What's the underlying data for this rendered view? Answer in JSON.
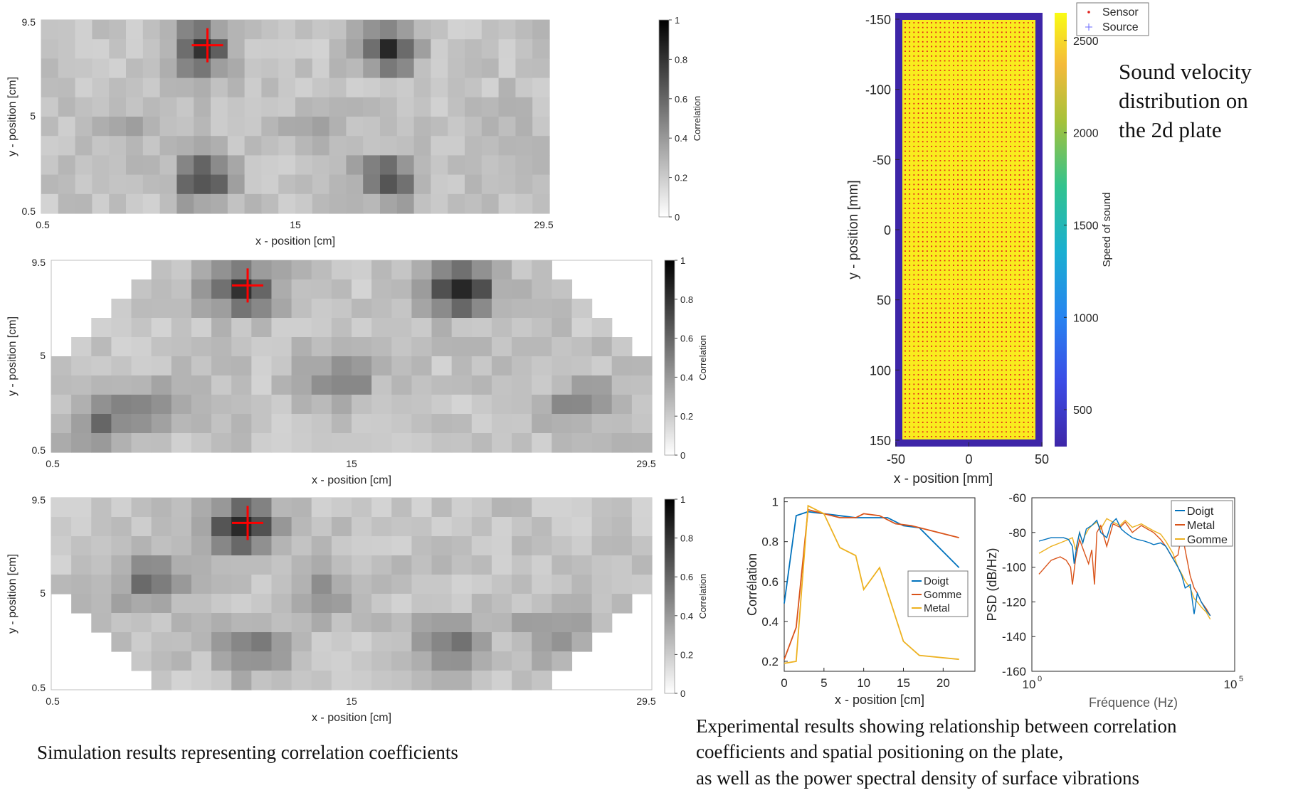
{
  "captions": {
    "simulation": "Simulation results representing correlation coefficients",
    "experimental": "Experimental results showing relationship between correlation\ncoefficients and spatial positioning on the plate,\n as well as the power spectral density of surface vibrations",
    "velocity": "Sound velocity\ndistribution on\nthe 2d plate"
  },
  "heatmap_labels": {
    "xlabel": "x - position [cm]",
    "ylabel": "y - position [cm]",
    "colorbar_label": "Correlation",
    "x_ticks": [
      "0.5",
      "15",
      "29.5"
    ],
    "y_ticks": [
      "9.5",
      "5",
      "0.5"
    ],
    "colorbar_ticks": [
      "1",
      "0.8",
      "0.6",
      "0.4",
      "0.2",
      "0"
    ]
  },
  "velocity_labels": {
    "xlabel": "x - position [mm]",
    "ylabel": "y - position [mm]",
    "colorbar_label": "Speed of sound",
    "x_ticks": [
      "-50",
      "0",
      "50"
    ],
    "y_ticks": [
      "-150",
      "-100",
      "-50",
      "0",
      "50",
      "100",
      "150"
    ],
    "colorbar_ticks": [
      "2500",
      "2000",
      "1500",
      "1000",
      "500"
    ],
    "legend": [
      "Sensor",
      "Source"
    ]
  },
  "colors": {
    "doigt": "#0072BD",
    "gomme": "#D95319",
    "metal": "#EDB120",
    "plate": "#F9EC1E",
    "border": "#3E26A8",
    "sensor": "#E0201B",
    "marker": "#FF0000"
  },
  "chart_data": [
    {
      "type": "heatmap",
      "title": "",
      "xlabel": "x - position [cm]",
      "ylabel": "y - position [cm]",
      "xlim": [
        0.5,
        29.5
      ],
      "ylim": [
        0.5,
        9.5
      ],
      "colorbar": {
        "label": "Correlation",
        "range": [
          0,
          1
        ]
      },
      "marker": {
        "x": 9.5,
        "y": 8.5
      },
      "blobs": [
        {
          "x": 9.5,
          "y": 8.5,
          "v": 0.55
        },
        {
          "x": 20.5,
          "y": 8.5,
          "v": 0.55
        },
        {
          "x": 9.5,
          "y": 1.8,
          "v": 0.5
        },
        {
          "x": 20.5,
          "y": 1.8,
          "v": 0.5
        },
        {
          "x": 16.5,
          "y": 4.5,
          "v": 0.18
        },
        {
          "x": 5.5,
          "y": 4.5,
          "v": 0.12
        },
        {
          "x": 26.5,
          "y": 4.5,
          "v": 0.12
        }
      ],
      "mask": "none"
    },
    {
      "type": "heatmap",
      "title": "",
      "xlabel": "x - position [cm]",
      "ylabel": "y - position [cm]",
      "xlim": [
        0.5,
        29.5
      ],
      "ylim": [
        0.5,
        9.5
      ],
      "colorbar": {
        "label": "Correlation",
        "range": [
          0,
          1
        ]
      },
      "marker": {
        "x": 9.5,
        "y": 8.5
      },
      "blobs": [
        {
          "x": 9.5,
          "y": 8.5,
          "v": 0.55
        },
        {
          "x": 20.5,
          "y": 8.5,
          "v": 0.6
        },
        {
          "x": 14.5,
          "y": 4.0,
          "v": 0.3
        },
        {
          "x": 2.5,
          "y": 1.5,
          "v": 0.3
        },
        {
          "x": 26.5,
          "y": 2.5,
          "v": 0.25
        },
        {
          "x": 4.5,
          "y": 2.5,
          "v": 0.2
        }
      ],
      "mask": "top-corners"
    },
    {
      "type": "heatmap",
      "title": "",
      "xlabel": "x - position [cm]",
      "ylabel": "y - position [cm]",
      "xlim": [
        0.5,
        29.5
      ],
      "ylim": [
        0.5,
        9.5
      ],
      "colorbar": {
        "label": "Correlation",
        "range": [
          0,
          1
        ]
      },
      "marker": {
        "x": 9.5,
        "y": 8.5
      },
      "blobs": [
        {
          "x": 9.5,
          "y": 8.5,
          "v": 0.65
        },
        {
          "x": 5.0,
          "y": 5.5,
          "v": 0.35
        },
        {
          "x": 10.0,
          "y": 2.0,
          "v": 0.3
        },
        {
          "x": 20.0,
          "y": 2.5,
          "v": 0.3
        },
        {
          "x": 25.0,
          "y": 3.0,
          "v": 0.25
        },
        {
          "x": 14.0,
          "y": 5.0,
          "v": 0.2
        }
      ],
      "mask": "bottom-corners"
    },
    {
      "type": "heatmap",
      "title": "",
      "xlabel": "x - position [mm]",
      "ylabel": "y - position [mm]",
      "xlim": [
        -50,
        50
      ],
      "ylim": [
        -150,
        150
      ],
      "y_reversed": true,
      "colorbar": {
        "label": "Speed of sound",
        "range": [
          300,
          2650
        ]
      },
      "plate_value": 2600,
      "border_value": 300,
      "sensor_grid": {
        "nx": 30,
        "ny": 88
      },
      "legend": [
        "Sensor",
        "Source"
      ]
    },
    {
      "type": "line",
      "xlabel": "x - position [cm]",
      "ylabel": "Corrélation",
      "xlim": [
        0,
        24
      ],
      "ylim": [
        0.15,
        1.02
      ],
      "x_ticks": [
        0,
        5,
        10,
        15,
        20
      ],
      "y_ticks": [
        0.2,
        0.4,
        0.6,
        0.8,
        1
      ],
      "legend": "inside right",
      "series": [
        {
          "name": "Doigt",
          "x": [
            0,
            1.5,
            3,
            5,
            7,
            9,
            11,
            13,
            15,
            17,
            22
          ],
          "y": [
            0.49,
            0.93,
            0.95,
            0.94,
            0.93,
            0.92,
            0.92,
            0.92,
            0.88,
            0.87,
            0.67
          ]
        },
        {
          "name": "Gomme",
          "x": [
            0,
            1.5,
            3,
            5,
            7,
            9,
            10,
            12,
            14,
            16,
            22
          ],
          "y": [
            0.21,
            0.37,
            0.96,
            0.94,
            0.92,
            0.92,
            0.94,
            0.93,
            0.89,
            0.88,
            0.82
          ]
        },
        {
          "name": "Metal",
          "x": [
            0,
            1.5,
            3,
            5,
            7,
            9,
            10,
            12,
            15,
            17,
            22
          ],
          "y": [
            0.19,
            0.2,
            0.98,
            0.94,
            0.77,
            0.73,
            0.56,
            0.67,
            0.3,
            0.23,
            0.21
          ]
        }
      ]
    },
    {
      "type": "line",
      "xlabel": "Fréquence (Hz)",
      "ylabel": "PSD (dB/Hz)",
      "xscale": "log",
      "xlim": [
        1,
        100000
      ],
      "ylim": [
        -160,
        -60
      ],
      "y_ticks": [
        -60,
        -80,
        -100,
        -120,
        -140,
        -160
      ],
      "legend": "top-right",
      "series": [
        {
          "name": "Doigt",
          "x": [
            1.5,
            3,
            6,
            8,
            10,
            11,
            13,
            15,
            18,
            22,
            30,
            40,
            50,
            70,
            90,
            120,
            160,
            200,
            300,
            400,
            600,
            800,
            1000,
            1500,
            2000,
            3000,
            4000,
            5000,
            6000,
            8000,
            10000,
            12000,
            15000,
            20000,
            25000
          ],
          "y": [
            -85,
            -83,
            -83,
            -84,
            -88,
            -98,
            -87,
            -80,
            -86,
            -78,
            -76,
            -73,
            -80,
            -83,
            -75,
            -72,
            -78,
            -80,
            -83,
            -84,
            -85,
            -86,
            -87,
            -86,
            -88,
            -95,
            -100,
            -105,
            -112,
            -110,
            -127,
            -115,
            -120,
            -125,
            -128
          ]
        },
        {
          "name": "Metal",
          "x": [
            1.5,
            3,
            5,
            7,
            9,
            10,
            12,
            15,
            20,
            25,
            30,
            35,
            40,
            50,
            70,
            100,
            150,
            200,
            300,
            500,
            700,
            1000,
            1500,
            2000,
            3000,
            4000,
            5000,
            6000,
            8000,
            10000,
            12000,
            15000,
            20000,
            25000
          ],
          "y": [
            -104,
            -96,
            -94,
            -96,
            -100,
            -110,
            -95,
            -84,
            -92,
            -98,
            -90,
            -110,
            -80,
            -76,
            -88,
            -75,
            -77,
            -74,
            -80,
            -76,
            -78,
            -80,
            -84,
            -88,
            -95,
            -93,
            -80,
            -90,
            -105,
            -112,
            -115,
            -120,
            -124,
            -128
          ]
        },
        {
          "name": "Gomme",
          "x": [
            1.5,
            3,
            5,
            8,
            10,
            12,
            15,
            18,
            20,
            25,
            30,
            40,
            50,
            70,
            100,
            150,
            200,
            300,
            500,
            700,
            1000,
            1500,
            2000,
            3000,
            4000,
            5000,
            6000,
            8000,
            10000,
            12000,
            15000,
            20000,
            25000
          ],
          "y": [
            -92,
            -88,
            -86,
            -84,
            -83,
            -90,
            -80,
            -86,
            -82,
            -78,
            -76,
            -74,
            -78,
            -72,
            -74,
            -76,
            -73,
            -77,
            -75,
            -77,
            -79,
            -81,
            -85,
            -92,
            -100,
            -104,
            -108,
            -112,
            -118,
            -120,
            -123,
            -126,
            -130
          ]
        }
      ]
    }
  ]
}
